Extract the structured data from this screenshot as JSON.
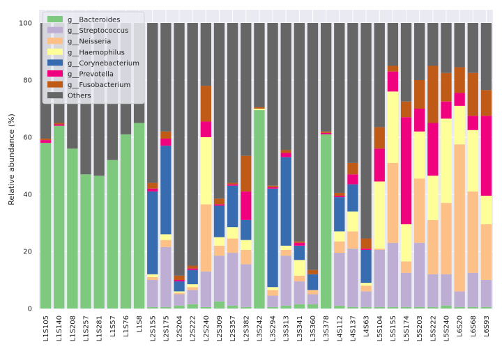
{
  "chart_data": {
    "type": "bar",
    "stacked": true,
    "title": "",
    "xlabel": "",
    "ylabel": "Relative abundance (%)",
    "ylim": [
      0,
      100
    ],
    "yticks": [
      0,
      20,
      40,
      60,
      80,
      100
    ],
    "grid": true,
    "legend_position": "top-left",
    "categories": [
      "L1S105",
      "L1S140",
      "L1S208",
      "L1S257",
      "L1S281",
      "L1S57",
      "L1S76",
      "L1S8",
      "L2S155",
      "L2S175",
      "L2S204",
      "L2S222",
      "L2S240",
      "L2S309",
      "L2S357",
      "L2S382",
      "L3S242",
      "L3S294",
      "L3S313",
      "L3S341",
      "L3S360",
      "L3S378",
      "L4S112",
      "L4S137",
      "L4S63",
      "L5S104",
      "L5S155",
      "L5S174",
      "L5S203",
      "L5S222",
      "L5S240",
      "L6S20",
      "L6S68",
      "L6S93"
    ],
    "series": [
      {
        "name": "g__Bacteroides",
        "color": "#7fc97f",
        "values": [
          58,
          64,
          56,
          47,
          46.5,
          52,
          61,
          65,
          0.5,
          0.5,
          1,
          1.5,
          0.5,
          2.5,
          1,
          0.5,
          69.5,
          0.5,
          1,
          1.5,
          1.5,
          61,
          1,
          0.5,
          0.5,
          0.5,
          0.5,
          0.5,
          0.5,
          0.5,
          1,
          0.5,
          0.5,
          0.5
        ]
      },
      {
        "name": "g__Streptococcus",
        "color": "#beaed4",
        "values": [
          0,
          0,
          0,
          0,
          0,
          0,
          0,
          0,
          9.5,
          21,
          4,
          5,
          12.5,
          16,
          18.5,
          15,
          0,
          4,
          17.5,
          8,
          3.5,
          0,
          18.5,
          20.5,
          5.5,
          20,
          22.5,
          12,
          22.5,
          11.5,
          11,
          5.5,
          12,
          9.5
        ]
      },
      {
        "name": "g__Neisseria",
        "color": "#fdc086",
        "values": [
          0,
          0,
          0,
          0,
          0,
          0,
          0,
          0,
          1,
          2.5,
          0.5,
          1,
          23.5,
          3.5,
          5,
          5,
          0,
          2,
          2,
          2,
          1.5,
          0,
          4,
          6,
          2,
          0.5,
          28,
          4,
          22.5,
          19,
          25,
          51.5,
          28.5,
          19.5
        ]
      },
      {
        "name": "g__Haemophilus",
        "color": "#ffff99",
        "values": [
          0,
          0,
          0,
          0,
          0,
          0,
          0,
          0,
          1,
          2,
          0.5,
          1,
          23.5,
          3,
          4,
          3.5,
          0.5,
          1,
          1.5,
          5.5,
          0,
          0,
          3.5,
          7,
          1,
          23.5,
          25,
          13,
          16.5,
          15.5,
          29.5,
          13.5,
          21.5,
          10
        ]
      },
      {
        "name": "g__Corynebacterium",
        "color": "#386cb0",
        "values": [
          0,
          0,
          0,
          0,
          0,
          0,
          0,
          0,
          29,
          31,
          3.5,
          5,
          0,
          11,
          14.5,
          7,
          0,
          34.5,
          31,
          5,
          5.5,
          0,
          12,
          9.5,
          11.5,
          0,
          0,
          0,
          0,
          0,
          0,
          0,
          0,
          0
        ]
      },
      {
        "name": "g__Prevotella",
        "color": "#f0027f",
        "values": [
          1,
          0.5,
          0,
          0,
          0,
          0,
          0,
          0,
          1,
          2.5,
          0.5,
          0.5,
          5.5,
          0.5,
          0.5,
          10,
          0,
          0.5,
          1.5,
          1,
          0,
          0.5,
          0.5,
          3.5,
          0.5,
          11.5,
          7,
          37.5,
          8,
          18.5,
          6,
          4.5,
          5,
          28
        ]
      },
      {
        "name": "g__Fusobacterium",
        "color": "#bf5b17",
        "values": [
          0.5,
          0.5,
          0,
          0,
          0,
          0,
          0,
          0,
          2,
          2.5,
          1.5,
          1,
          12.5,
          2,
          0.5,
          12.5,
          0.5,
          0.5,
          1,
          0.5,
          1.5,
          0.5,
          1,
          4,
          3.5,
          7.5,
          2,
          5.5,
          10,
          20,
          10,
          9,
          15,
          9
        ]
      },
      {
        "name": "Others",
        "color": "#666666",
        "values": [
          40.5,
          35,
          44,
          53,
          53.5,
          48,
          39,
          35,
          56,
          38,
          88.5,
          85,
          22,
          61.5,
          56,
          46.5,
          29.5,
          57,
          44.5,
          76.5,
          86.5,
          38,
          59.5,
          49,
          75.5,
          36.5,
          15,
          27.5,
          20,
          15,
          17.5,
          15.5,
          17.5,
          23.5
        ]
      }
    ]
  }
}
